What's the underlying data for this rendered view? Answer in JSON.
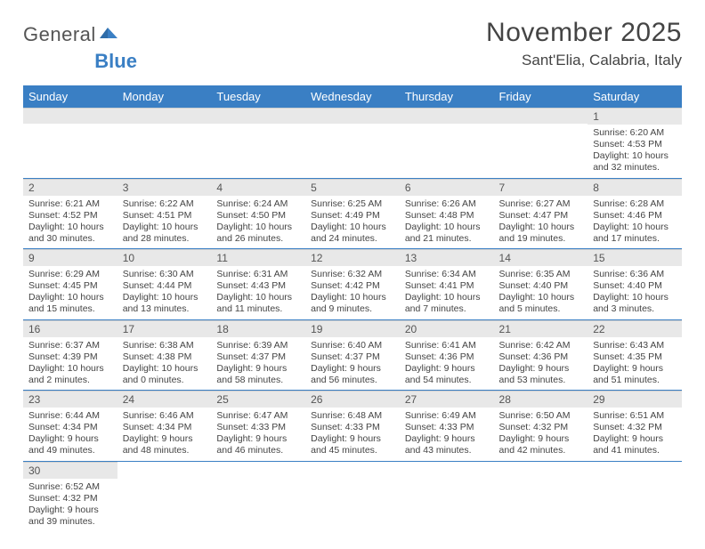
{
  "logo": {
    "text1": "General",
    "text2": "Blue"
  },
  "title": "November 2025",
  "location": "Sant'Elia, Calabria, Italy",
  "colors": {
    "header_bg": "#3a7fc4",
    "header_text": "#ffffff",
    "daynum_bg": "#e8e8e8",
    "cell_border": "#3a7fc4",
    "text": "#444444",
    "background": "#ffffff"
  },
  "weekdays": [
    "Sunday",
    "Monday",
    "Tuesday",
    "Wednesday",
    "Thursday",
    "Friday",
    "Saturday"
  ],
  "grid": [
    [
      null,
      null,
      null,
      null,
      null,
      null,
      {
        "n": "1",
        "sr": "Sunrise: 6:20 AM",
        "ss": "Sunset: 4:53 PM",
        "dl1": "Daylight: 10 hours",
        "dl2": "and 32 minutes."
      }
    ],
    [
      {
        "n": "2",
        "sr": "Sunrise: 6:21 AM",
        "ss": "Sunset: 4:52 PM",
        "dl1": "Daylight: 10 hours",
        "dl2": "and 30 minutes."
      },
      {
        "n": "3",
        "sr": "Sunrise: 6:22 AM",
        "ss": "Sunset: 4:51 PM",
        "dl1": "Daylight: 10 hours",
        "dl2": "and 28 minutes."
      },
      {
        "n": "4",
        "sr": "Sunrise: 6:24 AM",
        "ss": "Sunset: 4:50 PM",
        "dl1": "Daylight: 10 hours",
        "dl2": "and 26 minutes."
      },
      {
        "n": "5",
        "sr": "Sunrise: 6:25 AM",
        "ss": "Sunset: 4:49 PM",
        "dl1": "Daylight: 10 hours",
        "dl2": "and 24 minutes."
      },
      {
        "n": "6",
        "sr": "Sunrise: 6:26 AM",
        "ss": "Sunset: 4:48 PM",
        "dl1": "Daylight: 10 hours",
        "dl2": "and 21 minutes."
      },
      {
        "n": "7",
        "sr": "Sunrise: 6:27 AM",
        "ss": "Sunset: 4:47 PM",
        "dl1": "Daylight: 10 hours",
        "dl2": "and 19 minutes."
      },
      {
        "n": "8",
        "sr": "Sunrise: 6:28 AM",
        "ss": "Sunset: 4:46 PM",
        "dl1": "Daylight: 10 hours",
        "dl2": "and 17 minutes."
      }
    ],
    [
      {
        "n": "9",
        "sr": "Sunrise: 6:29 AM",
        "ss": "Sunset: 4:45 PM",
        "dl1": "Daylight: 10 hours",
        "dl2": "and 15 minutes."
      },
      {
        "n": "10",
        "sr": "Sunrise: 6:30 AM",
        "ss": "Sunset: 4:44 PM",
        "dl1": "Daylight: 10 hours",
        "dl2": "and 13 minutes."
      },
      {
        "n": "11",
        "sr": "Sunrise: 6:31 AM",
        "ss": "Sunset: 4:43 PM",
        "dl1": "Daylight: 10 hours",
        "dl2": "and 11 minutes."
      },
      {
        "n": "12",
        "sr": "Sunrise: 6:32 AM",
        "ss": "Sunset: 4:42 PM",
        "dl1": "Daylight: 10 hours",
        "dl2": "and 9 minutes."
      },
      {
        "n": "13",
        "sr": "Sunrise: 6:34 AM",
        "ss": "Sunset: 4:41 PM",
        "dl1": "Daylight: 10 hours",
        "dl2": "and 7 minutes."
      },
      {
        "n": "14",
        "sr": "Sunrise: 6:35 AM",
        "ss": "Sunset: 4:40 PM",
        "dl1": "Daylight: 10 hours",
        "dl2": "and 5 minutes."
      },
      {
        "n": "15",
        "sr": "Sunrise: 6:36 AM",
        "ss": "Sunset: 4:40 PM",
        "dl1": "Daylight: 10 hours",
        "dl2": "and 3 minutes."
      }
    ],
    [
      {
        "n": "16",
        "sr": "Sunrise: 6:37 AM",
        "ss": "Sunset: 4:39 PM",
        "dl1": "Daylight: 10 hours",
        "dl2": "and 2 minutes."
      },
      {
        "n": "17",
        "sr": "Sunrise: 6:38 AM",
        "ss": "Sunset: 4:38 PM",
        "dl1": "Daylight: 10 hours",
        "dl2": "and 0 minutes."
      },
      {
        "n": "18",
        "sr": "Sunrise: 6:39 AM",
        "ss": "Sunset: 4:37 PM",
        "dl1": "Daylight: 9 hours",
        "dl2": "and 58 minutes."
      },
      {
        "n": "19",
        "sr": "Sunrise: 6:40 AM",
        "ss": "Sunset: 4:37 PM",
        "dl1": "Daylight: 9 hours",
        "dl2": "and 56 minutes."
      },
      {
        "n": "20",
        "sr": "Sunrise: 6:41 AM",
        "ss": "Sunset: 4:36 PM",
        "dl1": "Daylight: 9 hours",
        "dl2": "and 54 minutes."
      },
      {
        "n": "21",
        "sr": "Sunrise: 6:42 AM",
        "ss": "Sunset: 4:36 PM",
        "dl1": "Daylight: 9 hours",
        "dl2": "and 53 minutes."
      },
      {
        "n": "22",
        "sr": "Sunrise: 6:43 AM",
        "ss": "Sunset: 4:35 PM",
        "dl1": "Daylight: 9 hours",
        "dl2": "and 51 minutes."
      }
    ],
    [
      {
        "n": "23",
        "sr": "Sunrise: 6:44 AM",
        "ss": "Sunset: 4:34 PM",
        "dl1": "Daylight: 9 hours",
        "dl2": "and 49 minutes."
      },
      {
        "n": "24",
        "sr": "Sunrise: 6:46 AM",
        "ss": "Sunset: 4:34 PM",
        "dl1": "Daylight: 9 hours",
        "dl2": "and 48 minutes."
      },
      {
        "n": "25",
        "sr": "Sunrise: 6:47 AM",
        "ss": "Sunset: 4:33 PM",
        "dl1": "Daylight: 9 hours",
        "dl2": "and 46 minutes."
      },
      {
        "n": "26",
        "sr": "Sunrise: 6:48 AM",
        "ss": "Sunset: 4:33 PM",
        "dl1": "Daylight: 9 hours",
        "dl2": "and 45 minutes."
      },
      {
        "n": "27",
        "sr": "Sunrise: 6:49 AM",
        "ss": "Sunset: 4:33 PM",
        "dl1": "Daylight: 9 hours",
        "dl2": "and 43 minutes."
      },
      {
        "n": "28",
        "sr": "Sunrise: 6:50 AM",
        "ss": "Sunset: 4:32 PM",
        "dl1": "Daylight: 9 hours",
        "dl2": "and 42 minutes."
      },
      {
        "n": "29",
        "sr": "Sunrise: 6:51 AM",
        "ss": "Sunset: 4:32 PM",
        "dl1": "Daylight: 9 hours",
        "dl2": "and 41 minutes."
      }
    ],
    [
      {
        "n": "30",
        "sr": "Sunrise: 6:52 AM",
        "ss": "Sunset: 4:32 PM",
        "dl1": "Daylight: 9 hours",
        "dl2": "and 39 minutes."
      },
      null,
      null,
      null,
      null,
      null,
      null
    ]
  ]
}
